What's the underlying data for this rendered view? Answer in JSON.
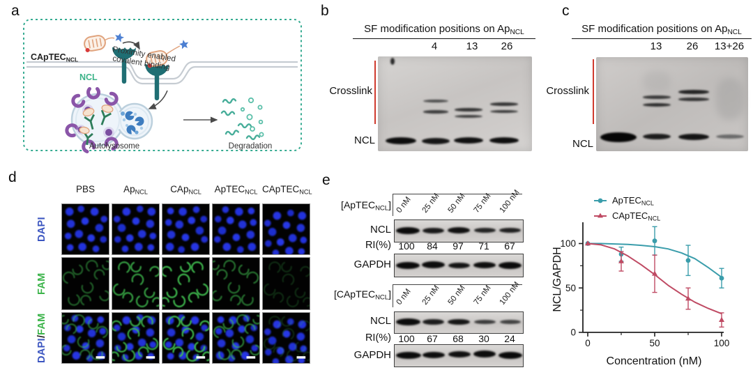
{
  "panel_a": {
    "label": "a",
    "captec_base": "CApTEC",
    "captec_sub": "NCL",
    "ncl": "NCL",
    "proximity_line1": "Proximity enabled",
    "proximity_line2": "covalent binding",
    "autolysosome": "Autolysosome",
    "degradation": "Degradation"
  },
  "panel_b": {
    "label": "b",
    "title_base": "SF modification positions on Ap",
    "title_sub": "NCL",
    "lane1": "4",
    "lane2": "13",
    "lane3": "26",
    "crosslink": "Crosslink",
    "ncl": "NCL"
  },
  "panel_c": {
    "label": "c",
    "title_base": "SF modification positions on Ap",
    "title_sub": "NCL",
    "lane1": "13",
    "lane2": "26",
    "lane3": "13+26",
    "crosslink": "Crosslink",
    "ncl": "NCL"
  },
  "panel_d": {
    "label": "d",
    "col1_base": "PBS",
    "col1_sub": "",
    "col2_base": "Ap",
    "col2_sub": "NCL",
    "col3_base": "CAp",
    "col3_sub": "NCL",
    "col4_base": "ApTEC",
    "col4_sub": "NCL",
    "col5_base": "CApTEC",
    "col5_sub": "NCL",
    "row1": "DAPI",
    "row2": "FAM",
    "row3_part1": "DAPI",
    "row3_sep": "/",
    "row3_part2": "FAM"
  },
  "panel_e": {
    "label": "e",
    "blot1": {
      "header_pre": "[",
      "header_base": "ApTEC",
      "header_sub": "NCL",
      "header_post": "]",
      "conc1": "0 nM",
      "conc2": "25 nM",
      "conc3": "50 nM",
      "conc4": "75 nM",
      "conc5": "100 nM",
      "ncl": "NCL",
      "ri_label": "RI(%)",
      "ri1": "100",
      "ri2": "84",
      "ri3": "97",
      "ri4": "71",
      "ri5": "67",
      "gapdh": "GAPDH"
    },
    "blot2": {
      "header_pre": "[",
      "header_base": "CApTEC",
      "header_sub": "NCL",
      "header_post": "]",
      "conc1": "0 nM",
      "conc2": "25 nM",
      "conc3": "50 nM",
      "conc4": "75 nM",
      "conc5": "100 nM",
      "ncl": "NCL",
      "ri_label": "RI(%)",
      "ri1": "100",
      "ri2": "67",
      "ri3": "68",
      "ri4": "30",
      "ri5": "24",
      "gapdh": "GAPDH"
    }
  },
  "chart_data": {
    "type": "line",
    "x": [
      0,
      25,
      50,
      75,
      100
    ],
    "series": [
      {
        "name": "ApTEC",
        "name_sub": "NCL",
        "color": "#3a9dab",
        "marker": "circle",
        "values": [
          100,
          88,
          103,
          81,
          61
        ],
        "errors": [
          0,
          8,
          16,
          17,
          11
        ],
        "fit": [
          [
            0,
            100
          ],
          [
            10,
            100
          ],
          [
            20,
            99.5
          ],
          [
            30,
            99
          ],
          [
            40,
            98
          ],
          [
            50,
            96.5
          ],
          [
            60,
            94
          ],
          [
            70,
            89.5
          ],
          [
            80,
            83
          ],
          [
            90,
            73
          ],
          [
            100,
            62
          ]
        ]
      },
      {
        "name": "CApTEC",
        "name_sub": "NCL",
        "color": "#bf4a63",
        "marker": "triangle",
        "values": [
          100,
          80,
          66,
          38,
          14
        ],
        "errors": [
          0,
          11,
          21,
          12,
          8
        ],
        "fit": [
          [
            0,
            100
          ],
          [
            10,
            98.5
          ],
          [
            20,
            94
          ],
          [
            30,
            86
          ],
          [
            40,
            76
          ],
          [
            50,
            65
          ],
          [
            60,
            53
          ],
          [
            70,
            43
          ],
          [
            80,
            34
          ],
          [
            90,
            27
          ],
          [
            100,
            21
          ]
        ]
      }
    ],
    "xlabel": "Concentration (nM)",
    "ylabel": "NCL/GAPDH",
    "xlim": [
      0,
      100
    ],
    "ylim": [
      0,
      120
    ],
    "xticks": [
      0,
      50,
      100
    ],
    "yticks": [
      0,
      50,
      100
    ],
    "xminor": [
      25,
      75
    ],
    "yminor": [
      25,
      75
    ],
    "grid": false,
    "legend_position": "top-left"
  },
  "colors": {
    "crosslink_red": "#e03a2f",
    "dapi_blue": "#3b55c0",
    "fam_green": "#3cb44a",
    "schematic_teal": "#35ab91",
    "receptor_teal": "#1f6e73",
    "series_teal": "#3a9dab",
    "series_crimson": "#bf4a63"
  }
}
